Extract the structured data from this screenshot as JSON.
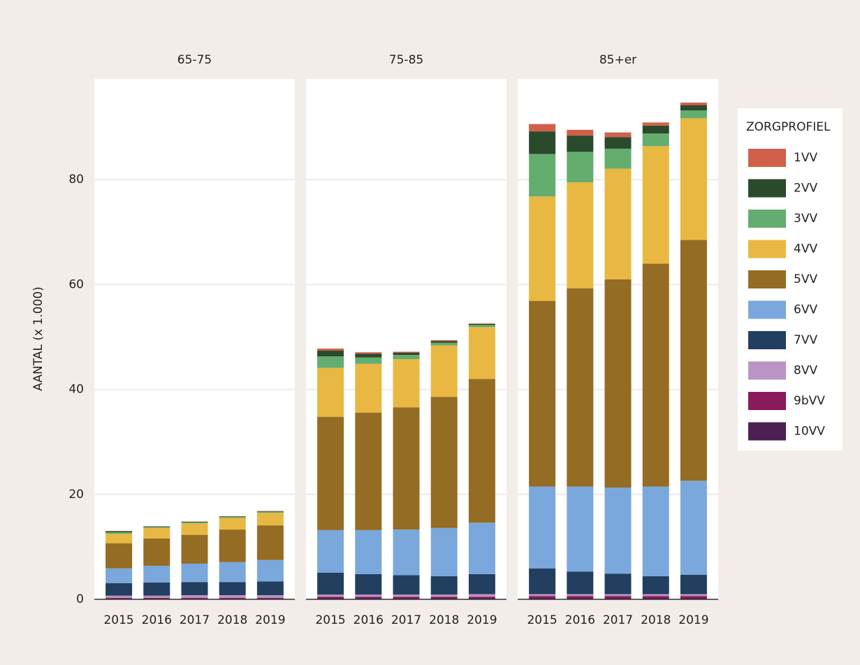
{
  "chart_data": {
    "type": "bar",
    "stacked": true,
    "ylabel": "AANTAL (x 1.000)",
    "legend_title": "ZORGPROFIEL",
    "legend": "right",
    "grid": true,
    "facets": [
      "65-75",
      "75-85",
      "85+er"
    ],
    "categories": [
      "2015",
      "2016",
      "2017",
      "2018",
      "2019"
    ],
    "ylim": [
      0,
      99.2
    ],
    "yticks": [
      0,
      20,
      40,
      60,
      80
    ],
    "series": [
      {
        "name": "1VV",
        "color": "#d1604a",
        "values": [
          [
            0.05,
            0.05,
            0.05,
            0.05,
            0.05
          ],
          [
            0.4,
            0.3,
            0.2,
            0.2,
            0.1
          ],
          [
            1.4,
            1.1,
            0.9,
            0.6,
            0.5
          ]
        ]
      },
      {
        "name": "2VV",
        "color": "#2a4a2c",
        "values": [
          [
            0.2,
            0.1,
            0.1,
            0.1,
            0.1
          ],
          [
            1.1,
            0.7,
            0.4,
            0.3,
            0.2
          ],
          [
            4.3,
            3.1,
            2.2,
            1.5,
            1.0
          ]
        ]
      },
      {
        "name": "3VV",
        "color": "#63ad6f",
        "values": [
          [
            0.3,
            0.2,
            0.2,
            0.2,
            0.2
          ],
          [
            2.2,
            1.2,
            0.8,
            0.5,
            0.4
          ],
          [
            8.1,
            5.8,
            3.8,
            2.4,
            1.5
          ]
        ]
      },
      {
        "name": "4VV",
        "color": "#e8b842",
        "values": [
          [
            1.8,
            2.0,
            2.2,
            2.2,
            2.4
          ],
          [
            9.3,
            9.3,
            9.2,
            9.8,
            9.9
          ],
          [
            19.9,
            20.2,
            21.1,
            22.4,
            23.2
          ]
        ]
      },
      {
        "name": "5VV",
        "color": "#956c23",
        "values": [
          [
            4.8,
            5.2,
            5.5,
            6.2,
            6.6
          ],
          [
            21.6,
            22.4,
            23.3,
            25.0,
            27.4
          ],
          [
            35.4,
            37.8,
            39.7,
            42.5,
            45.9
          ]
        ]
      },
      {
        "name": "6VV",
        "color": "#7aa8dc",
        "values": [
          [
            2.8,
            3.2,
            3.5,
            3.8,
            4.1
          ],
          [
            8.1,
            8.4,
            8.7,
            9.2,
            9.8
          ],
          [
            15.6,
            16.2,
            16.4,
            17.1,
            17.9
          ]
        ]
      },
      {
        "name": "7VV",
        "color": "#223f5f",
        "values": [
          [
            2.4,
            2.5,
            2.5,
            2.5,
            2.6
          ],
          [
            4.2,
            3.9,
            3.7,
            3.5,
            3.8
          ],
          [
            4.9,
            4.3,
            3.9,
            3.4,
            3.7
          ]
        ]
      },
      {
        "name": "8VV",
        "color": "#bb93c4",
        "values": [
          [
            0.4,
            0.4,
            0.5,
            0.5,
            0.5
          ],
          [
            0.4,
            0.4,
            0.4,
            0.4,
            0.5
          ],
          [
            0.4,
            0.4,
            0.4,
            0.4,
            0.4
          ]
        ]
      },
      {
        "name": "9bVV",
        "color": "#8b1a5a",
        "values": [
          [
            0.2,
            0.2,
            0.2,
            0.2,
            0.2
          ],
          [
            0.3,
            0.3,
            0.3,
            0.3,
            0.3
          ],
          [
            0.4,
            0.4,
            0.4,
            0.4,
            0.4
          ]
        ]
      },
      {
        "name": "10VV",
        "color": "#4e1f51",
        "values": [
          [
            0.1,
            0.1,
            0.1,
            0.1,
            0.1
          ],
          [
            0.2,
            0.2,
            0.2,
            0.2,
            0.2
          ],
          [
            0.2,
            0.2,
            0.2,
            0.2,
            0.2
          ]
        ]
      }
    ]
  }
}
